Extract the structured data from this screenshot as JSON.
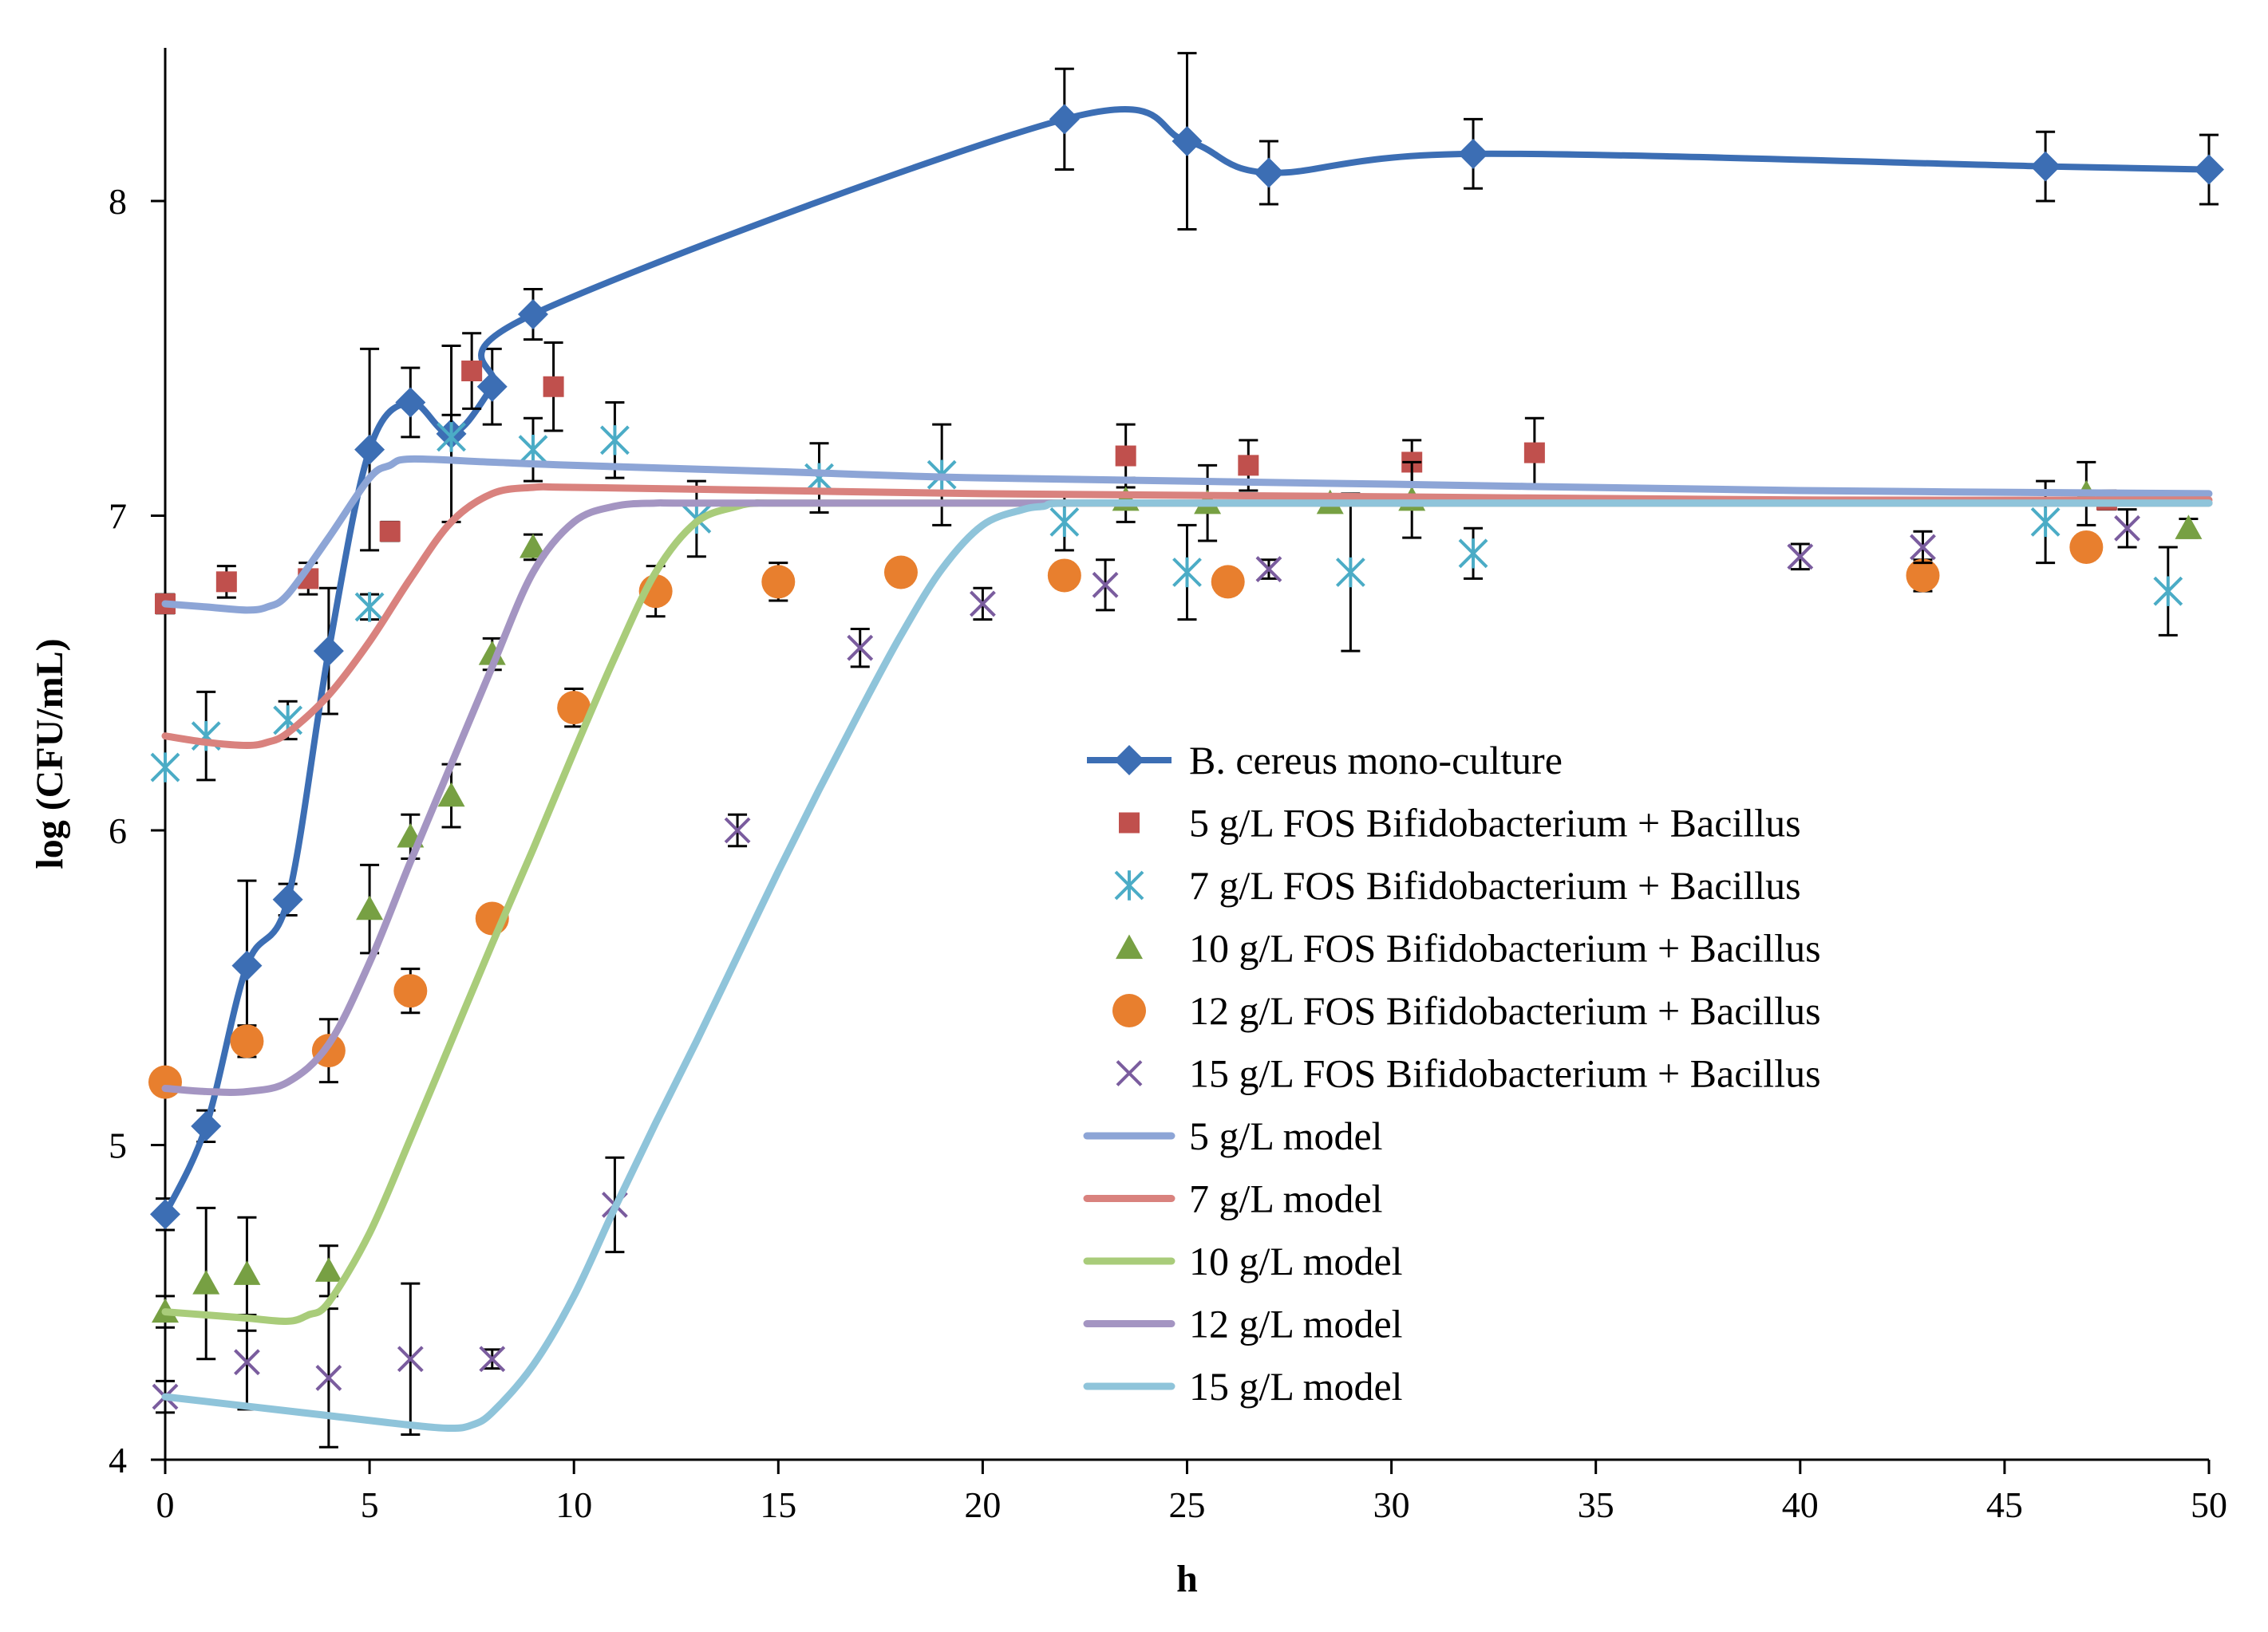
{
  "chart_data": {
    "type": "scatter",
    "xlabel": "h",
    "ylabel": "log (CFU/mL)",
    "xlim": [
      0,
      50
    ],
    "ylim": [
      4,
      8.5
    ],
    "xticks": [
      "0",
      "5",
      "10",
      "15",
      "20",
      "25",
      "30",
      "35",
      "40",
      "45",
      "50"
    ],
    "yticks": [
      "4",
      "5",
      "6",
      "7",
      "8"
    ],
    "grid": false,
    "legend_position": "center-right",
    "series": [
      {
        "name": "B. cereus mono-culture",
        "kind": "line-marker",
        "marker": "diamond",
        "color": "#3C6EB4",
        "x": [
          0,
          1,
          2,
          3,
          4,
          5,
          6,
          7,
          8,
          9,
          22,
          25,
          27,
          32,
          46,
          50
        ],
        "y": [
          4.78,
          5.06,
          5.57,
          5.78,
          6.57,
          7.21,
          7.36,
          7.26,
          7.41,
          7.64,
          8.26,
          8.19,
          8.09,
          8.15,
          8.11,
          8.1
        ],
        "err": [
          0.05,
          0.05,
          0.27,
          0.05,
          0.2,
          0.32,
          0.11,
          0.28,
          0.12,
          0.08,
          0.16,
          0.28,
          0.1,
          0.11,
          0.11,
          0.11
        ]
      },
      {
        "name": "5 g/L FOS Bifidobacterium + Bacillus",
        "kind": "marker",
        "marker": "square",
        "color": "#C0504D",
        "x": [
          0,
          1.5,
          3.5,
          5.5,
          7.5,
          9.5,
          23.5,
          26.5,
          30.5,
          33.5,
          47.5
        ],
        "y": [
          6.72,
          6.79,
          6.8,
          6.95,
          7.46,
          7.41,
          7.19,
          7.16,
          7.17,
          7.2,
          7.05
        ],
        "err": [
          0.03,
          0.05,
          0.05,
          0.03,
          0.12,
          0.14,
          0.1,
          0.08,
          0.07,
          0.11,
          0.03
        ]
      },
      {
        "name": "7 g/L FOS Bifidobacterium + Bacillus",
        "kind": "marker",
        "marker": "asterisk",
        "color": "#4BACC6",
        "x": [
          0,
          1,
          3,
          5,
          7,
          9,
          11,
          13,
          16,
          19,
          22,
          25,
          29,
          32,
          46,
          49
        ],
        "y": [
          6.2,
          6.3,
          6.35,
          6.71,
          7.25,
          7.21,
          7.24,
          6.99,
          7.12,
          7.13,
          6.98,
          6.82,
          6.82,
          6.88,
          6.98,
          6.76
        ],
        "err": [
          0.0,
          0.14,
          0.06,
          0.04,
          0.07,
          0.1,
          0.12,
          0.12,
          0.11,
          0.16,
          0.09,
          0.15,
          0.25,
          0.08,
          0.13,
          0.14
        ]
      },
      {
        "name": "10 g/L FOS Bifidobacterium + Bacillus",
        "kind": "marker",
        "marker": "triangle",
        "color": "#77A043",
        "x": [
          0,
          1,
          2,
          4,
          5,
          6,
          7,
          8,
          9,
          23.5,
          25.5,
          28.5,
          30.5,
          47,
          49.5
        ],
        "y": [
          4.47,
          4.56,
          4.59,
          4.6,
          5.75,
          5.98,
          6.11,
          6.56,
          6.9,
          7.05,
          7.04,
          7.04,
          7.05,
          7.07,
          6.96
        ],
        "err": [
          0.05,
          0.24,
          0.18,
          0.08,
          0.14,
          0.07,
          0.1,
          0.05,
          0.04,
          0.07,
          0.12,
          0.02,
          0.12,
          0.1,
          0.03
        ]
      },
      {
        "name": "12 g/L FOS Bifidobacterium + Bacillus",
        "kind": "marker",
        "marker": "circle",
        "color": "#E87F2E",
        "x": [
          0,
          2,
          4,
          6,
          8,
          10,
          12,
          15,
          18,
          22,
          26,
          43,
          47
        ],
        "y": [
          5.2,
          5.33,
          5.3,
          5.49,
          5.72,
          6.39,
          6.76,
          6.79,
          6.82,
          6.81,
          6.79,
          6.81,
          6.9
        ],
        "err": [
          0.03,
          0.05,
          0.1,
          0.07,
          0.03,
          0.06,
          0.08,
          0.06,
          0.03,
          0.04,
          0.04,
          0.05,
          0.04
        ]
      },
      {
        "name": "15 g/L FOS Bifidobacterium + Bacillus",
        "kind": "marker",
        "marker": "x",
        "color": "#7A5C9E",
        "x": [
          0,
          2,
          4,
          6,
          8,
          11,
          14,
          17,
          20,
          23,
          27,
          40,
          43,
          48
        ],
        "y": [
          4.2,
          4.31,
          4.26,
          4.32,
          4.32,
          4.81,
          6.0,
          6.58,
          6.72,
          6.78,
          6.83,
          6.87,
          6.9,
          6.96
        ],
        "err": [
          0.05,
          0.15,
          0.22,
          0.24,
          0.03,
          0.15,
          0.05,
          0.06,
          0.05,
          0.08,
          0.03,
          0.04,
          0.05,
          0.06
        ]
      },
      {
        "name": "5 g/L model",
        "kind": "line",
        "color": "#8DA5D6",
        "x": [
          0,
          1,
          2,
          2.5,
          3,
          4,
          5,
          5.5,
          6,
          8,
          10,
          15,
          20,
          30,
          40,
          50
        ],
        "y": [
          6.72,
          6.71,
          6.7,
          6.71,
          6.75,
          6.93,
          7.12,
          7.16,
          7.18,
          7.17,
          7.16,
          7.14,
          7.12,
          7.1,
          7.08,
          7.07
        ]
      },
      {
        "name": "7 g/L model",
        "kind": "line",
        "color": "#D9827E",
        "x": [
          0,
          1,
          2,
          2.5,
          3,
          4,
          5,
          6,
          7,
          8,
          9,
          10,
          15,
          20,
          30,
          40,
          50
        ],
        "y": [
          6.3,
          6.28,
          6.27,
          6.28,
          6.31,
          6.43,
          6.6,
          6.8,
          6.98,
          7.07,
          7.09,
          7.09,
          7.08,
          7.07,
          7.06,
          7.05,
          7.05
        ]
      },
      {
        "name": "10 g/L model",
        "kind": "line",
        "color": "#A9CC7A",
        "x": [
          0,
          1,
          2,
          3,
          3.5,
          4,
          5,
          6,
          7,
          8,
          9,
          10,
          11,
          12,
          13,
          14,
          14.5,
          15,
          20,
          30,
          40,
          50
        ],
        "y": [
          4.47,
          4.46,
          4.45,
          4.44,
          4.46,
          4.5,
          4.72,
          5.02,
          5.33,
          5.64,
          5.94,
          6.25,
          6.55,
          6.82,
          6.98,
          7.03,
          7.04,
          7.04,
          7.04,
          7.04,
          7.04,
          7.04
        ]
      },
      {
        "name": "12 g/L model",
        "kind": "line",
        "color": "#A495C2",
        "x": [
          0,
          1,
          2,
          3,
          4,
          5,
          6,
          7,
          8,
          9,
          10,
          11,
          12,
          13,
          20,
          30,
          40,
          50
        ],
        "y": [
          5.18,
          5.17,
          5.17,
          5.2,
          5.32,
          5.58,
          5.9,
          6.21,
          6.52,
          6.82,
          6.98,
          7.03,
          7.04,
          7.04,
          7.04,
          7.04,
          7.04,
          7.04
        ]
      },
      {
        "name": "15 g/L model",
        "kind": "line",
        "color": "#8FC4DA",
        "x": [
          0,
          2,
          4,
          6,
          7,
          7.5,
          8,
          9,
          10,
          11,
          12,
          13,
          14,
          15,
          16,
          17,
          18,
          19,
          20,
          21,
          21.5,
          22,
          25,
          30,
          40,
          50
        ],
        "y": [
          4.2,
          4.17,
          4.14,
          4.11,
          4.1,
          4.11,
          4.15,
          4.3,
          4.52,
          4.8,
          5.07,
          5.33,
          5.6,
          5.87,
          6.13,
          6.38,
          6.62,
          6.83,
          6.97,
          7.02,
          7.03,
          7.04,
          7.04,
          7.04,
          7.04,
          7.04
        ]
      }
    ]
  }
}
